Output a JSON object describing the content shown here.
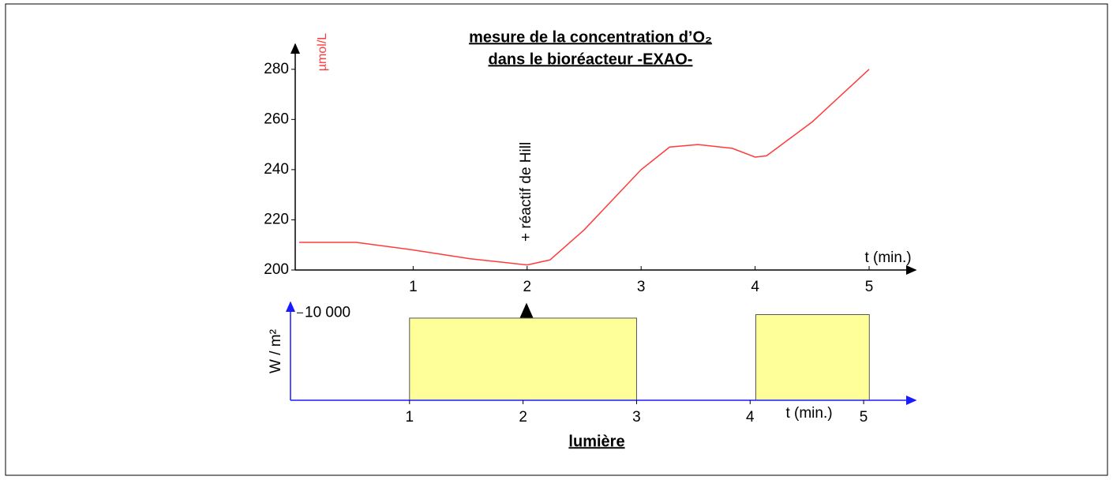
{
  "chart_data": [
    {
      "type": "line",
      "title": [
        "mesure de la concentration d’O₂",
        "dans le bioréacteur -EXAO-"
      ],
      "y_label": "µmol/L",
      "x_label": "t (min.)",
      "annotation": "+ réactif de Hill",
      "x": [
        0,
        0.5,
        1,
        1.5,
        2,
        2.2,
        2.5,
        3,
        3.25,
        3.5,
        3.8,
        4,
        4.1,
        4.5,
        5
      ],
      "values": [
        211,
        211,
        208,
        204.5,
        202,
        204,
        216,
        240,
        249,
        250,
        248.5,
        245,
        245.5,
        259,
        280
      ],
      "color": "#ff3b3b",
      "axis_color": "#000000",
      "xlim": [
        0,
        5.45
      ],
      "xticks": [
        1,
        2,
        3,
        4,
        5
      ],
      "ylim": [
        200,
        290
      ],
      "yticks": [
        200,
        220,
        240,
        260,
        280
      ]
    },
    {
      "type": "bar",
      "title": "lumière",
      "y_label": "W / m²",
      "x_label": "t (min.)",
      "x_start": [
        1,
        4.05
      ],
      "x_end": [
        3,
        5.05
      ],
      "values": [
        9400,
        9800
      ],
      "color": "#ffff99",
      "axis_color": "#1a1aff",
      "xlim": [
        0,
        5.5
      ],
      "xticks": [
        1,
        2,
        3,
        4,
        5
      ],
      "ylim": [
        0,
        11200
      ],
      "yticks": [
        {
          "value": 10000,
          "label": "10 000"
        }
      ]
    }
  ]
}
